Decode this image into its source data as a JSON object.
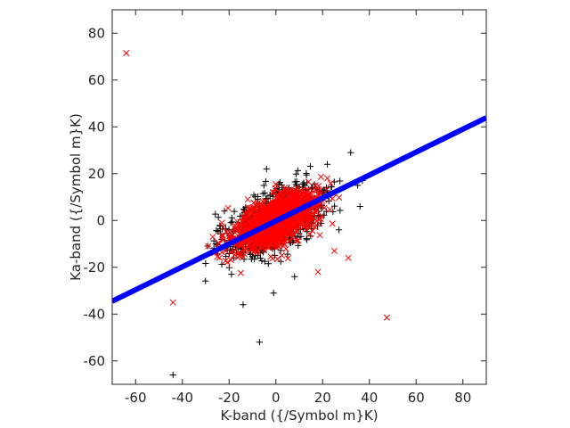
{
  "chart_data": {
    "type": "scatter",
    "title": "",
    "xlabel": "K-band ({/Symbol m}K)",
    "ylabel": "Ka-band ({/Symbol m}K)",
    "xlim": [
      -70,
      90
    ],
    "ylim": [
      -70,
      90
    ],
    "xticks": [
      -60,
      -40,
      -20,
      0,
      20,
      40,
      60,
      80
    ],
    "yticks": [
      -60,
      -40,
      -20,
      0,
      20,
      40,
      60,
      80
    ],
    "grid": false,
    "legend": "none",
    "fit_line": {
      "slope": 0.49,
      "intercept": -0.2,
      "x_range": [
        -70,
        90
      ],
      "color": "#0000ff"
    },
    "cloud": {
      "red_cross": {
        "count": 1600,
        "sx": 8.5,
        "sy": 6.0,
        "rho": 0.62,
        "color": "#ff0000"
      },
      "black_plus": {
        "count": 900,
        "sx": 10.0,
        "sy": 7.5,
        "rho": 0.55,
        "color": "#000000"
      }
    },
    "series": [
      {
        "marker": "x",
        "color": "#ff0000",
        "points": [
          [
            -64,
            71.5
          ],
          [
            -44,
            -35
          ],
          [
            47.5,
            -41.5
          ],
          [
            31,
            -16
          ],
          [
            25,
            -13
          ],
          [
            18,
            -22
          ],
          [
            -23,
            -1
          ],
          [
            -29,
            -11
          ],
          [
            -27,
            -7
          ],
          [
            22,
            18
          ],
          [
            -12,
            9
          ],
          [
            12,
            13
          ]
        ]
      },
      {
        "marker": "+",
        "color": "#000000",
        "points": [
          [
            -44,
            -66
          ],
          [
            -7,
            -52
          ],
          [
            -14,
            -36
          ],
          [
            -1,
            -31
          ],
          [
            -19,
            -23
          ],
          [
            32,
            29
          ],
          [
            37,
            17
          ],
          [
            35,
            15
          ],
          [
            22,
            24
          ],
          [
            -4,
            22
          ],
          [
            -22,
            4
          ],
          [
            8,
            -24
          ],
          [
            27,
            -4
          ],
          [
            36,
            6
          ]
        ]
      }
    ]
  }
}
